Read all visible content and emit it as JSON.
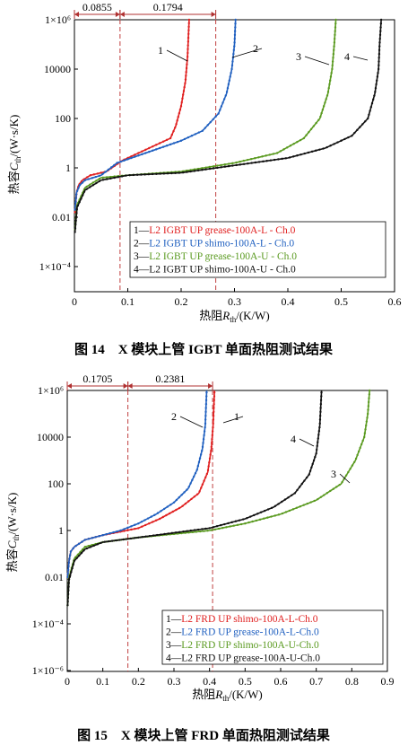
{
  "chart_data": [
    {
      "type": "line",
      "caption": "图 14　X 模块上管 IGBT 单面热阻测试结果",
      "xlabel_prefix": "热阻",
      "xlabel_sym": "R",
      "xlabel_sub": "th",
      "xlabel_unit": "/(K/W)",
      "ylabel_prefix": "热容",
      "ylabel_sym": "C",
      "ylabel_sub": "th",
      "ylabel_unit": "/(W·s/K)",
      "x_ticks": [
        "0",
        "0.1",
        "0.2",
        "0.3",
        "0.4",
        "0.5",
        "0.6"
      ],
      "y_ticks": [
        "1×10⁶",
        "10000",
        "100",
        "1",
        "0.01",
        "1×10⁻⁴"
      ],
      "xlim": [
        0,
        0.6
      ],
      "ylim_log10": [
        -5,
        6
      ],
      "y_log": true,
      "markers": [
        0.0855,
        0.2649
      ],
      "annotations": [
        "0.0855",
        "0.1794"
      ],
      "legend_position": "bottom-right",
      "series": [
        {
          "name": "L2 IGBT UP grease-100A-L - Ch.0",
          "label": "1",
          "color": "#e02020",
          "points": [
            [
              0.001,
              -1.8
            ],
            [
              0.004,
              -1.0
            ],
            [
              0.008,
              -0.7
            ],
            [
              0.015,
              -0.5
            ],
            [
              0.03,
              -0.3
            ],
            [
              0.06,
              -0.15
            ],
            [
              0.09,
              0.3
            ],
            [
              0.12,
              0.6
            ],
            [
              0.15,
              0.9
            ],
            [
              0.18,
              1.2
            ],
            [
              0.19,
              1.7
            ],
            [
              0.2,
              2.5
            ],
            [
              0.208,
              3.5
            ],
            [
              0.212,
              4.5
            ],
            [
              0.214,
              5.5
            ],
            [
              0.215,
              6.0
            ]
          ]
        },
        {
          "name": "L2 IGBT UP shimo-100A-L - Ch.0",
          "label": "2",
          "color": "#2060c0",
          "points": [
            [
              0.001,
              -1.7
            ],
            [
              0.004,
              -1.0
            ],
            [
              0.01,
              -0.7
            ],
            [
              0.02,
              -0.5
            ],
            [
              0.05,
              -0.3
            ],
            [
              0.08,
              0.2
            ],
            [
              0.12,
              0.5
            ],
            [
              0.16,
              0.8
            ],
            [
              0.2,
              1.1
            ],
            [
              0.24,
              1.5
            ],
            [
              0.27,
              2.2
            ],
            [
              0.285,
              3.0
            ],
            [
              0.295,
              4.0
            ],
            [
              0.3,
              5.0
            ],
            [
              0.302,
              6.0
            ]
          ]
        },
        {
          "name": "L2 IGBT UP grease-100A-U - Ch.0",
          "label": "3",
          "color": "#5a9a20",
          "points": [
            [
              0.001,
              -2.5
            ],
            [
              0.005,
              -1.5
            ],
            [
              0.02,
              -0.8
            ],
            [
              0.05,
              -0.4
            ],
            [
              0.1,
              -0.3
            ],
            [
              0.2,
              -0.15
            ],
            [
              0.3,
              0.2
            ],
            [
              0.38,
              0.6
            ],
            [
              0.43,
              1.2
            ],
            [
              0.46,
              2.0
            ],
            [
              0.475,
              3.0
            ],
            [
              0.483,
              4.0
            ],
            [
              0.487,
              5.0
            ],
            [
              0.49,
              6.0
            ]
          ]
        },
        {
          "name": "L2 IGBT UP shimo-100A-U - Ch.0",
          "label": "4",
          "color": "#111111",
          "points": [
            [
              0.001,
              -2.6
            ],
            [
              0.005,
              -1.6
            ],
            [
              0.02,
              -0.9
            ],
            [
              0.05,
              -0.5
            ],
            [
              0.1,
              -0.3
            ],
            [
              0.2,
              -0.2
            ],
            [
              0.3,
              0.1
            ],
            [
              0.4,
              0.4
            ],
            [
              0.47,
              0.8
            ],
            [
              0.52,
              1.3
            ],
            [
              0.55,
              2.0
            ],
            [
              0.563,
              3.0
            ],
            [
              0.57,
              4.0
            ],
            [
              0.572,
              5.0
            ],
            [
              0.575,
              6.0
            ]
          ]
        }
      ]
    },
    {
      "type": "line",
      "caption": "图 15　X 模块上管 FRD 单面热阻测试结果",
      "xlabel_prefix": "热阻",
      "xlabel_sym": "R",
      "xlabel_sub": "th",
      "xlabel_unit": "/(K/W)",
      "ylabel_prefix": "热容",
      "ylabel_sym": "C",
      "ylabel_sub": "th",
      "ylabel_unit": "/(W·s/K)",
      "x_ticks": [
        "0",
        "0.1",
        "0.2",
        "0.3",
        "0.4",
        "0.5",
        "0.6",
        "0.7",
        "0.8",
        "0.9"
      ],
      "y_ticks": [
        "1×10⁶",
        "10000",
        "100",
        "1",
        "0.01",
        "1×10⁻⁴",
        "1×10⁻⁶"
      ],
      "xlim": [
        0,
        0.9
      ],
      "ylim_log10": [
        -6,
        6
      ],
      "y_log": true,
      "markers": [
        0.1705,
        0.4086
      ],
      "annotations": [
        "0.1705",
        "0.2381"
      ],
      "legend_position": "bottom-right",
      "series": [
        {
          "name": "L2 FRD UP shimo-100A-L-Ch.0",
          "label": "1",
          "color": "#e02020",
          "points": [
            [
              0.001,
              -2.0
            ],
            [
              0.005,
              -1.3
            ],
            [
              0.01,
              -0.9
            ],
            [
              0.02,
              -0.7
            ],
            [
              0.05,
              -0.4
            ],
            [
              0.1,
              -0.2
            ],
            [
              0.15,
              -0.05
            ],
            [
              0.2,
              0.1
            ],
            [
              0.26,
              0.5
            ],
            [
              0.32,
              1.0
            ],
            [
              0.37,
              1.6
            ],
            [
              0.395,
              2.5
            ],
            [
              0.405,
              3.5
            ],
            [
              0.41,
              4.5
            ],
            [
              0.414,
              6.0
            ]
          ]
        },
        {
          "name": "L2 FRD UP grease-100A-L-Ch.0",
          "label": "2",
          "color": "#2060c0",
          "points": [
            [
              0.001,
              -2.0
            ],
            [
              0.005,
              -1.3
            ],
            [
              0.01,
              -0.9
            ],
            [
              0.02,
              -0.7
            ],
            [
              0.05,
              -0.4
            ],
            [
              0.1,
              -0.2
            ],
            [
              0.15,
              0.0
            ],
            [
              0.2,
              0.3
            ],
            [
              0.25,
              0.7
            ],
            [
              0.3,
              1.2
            ],
            [
              0.34,
              1.8
            ],
            [
              0.365,
              2.6
            ],
            [
              0.38,
              3.5
            ],
            [
              0.388,
              4.5
            ],
            [
              0.392,
              6.0
            ]
          ]
        },
        {
          "name": "L2 FRD UP shimo-100A-U-Ch.0",
          "label": "3",
          "color": "#5a9a20",
          "points": [
            [
              0.001,
              -3.2
            ],
            [
              0.005,
              -2.0
            ],
            [
              0.02,
              -1.2
            ],
            [
              0.05,
              -0.7
            ],
            [
              0.1,
              -0.5
            ],
            [
              0.2,
              -0.3
            ],
            [
              0.3,
              -0.15
            ],
            [
              0.4,
              0.0
            ],
            [
              0.5,
              0.3
            ],
            [
              0.6,
              0.7
            ],
            [
              0.7,
              1.3
            ],
            [
              0.77,
              2.0
            ],
            [
              0.81,
              3.0
            ],
            [
              0.835,
              4.0
            ],
            [
              0.845,
              5.0
            ],
            [
              0.85,
              6.0
            ]
          ]
        },
        {
          "name": "L2 FRD UP grease-100A-U-Ch.0",
          "label": "4",
          "color": "#111111",
          "points": [
            [
              0.001,
              -3.2
            ],
            [
              0.005,
              -2.1
            ],
            [
              0.02,
              -1.3
            ],
            [
              0.05,
              -0.8
            ],
            [
              0.1,
              -0.5
            ],
            [
              0.2,
              -0.3
            ],
            [
              0.3,
              -0.1
            ],
            [
              0.4,
              0.1
            ],
            [
              0.5,
              0.5
            ],
            [
              0.58,
              1.0
            ],
            [
              0.64,
              1.6
            ],
            [
              0.68,
              2.4
            ],
            [
              0.7,
              3.3
            ],
            [
              0.71,
              4.5
            ],
            [
              0.715,
              6.0
            ]
          ]
        }
      ]
    }
  ]
}
